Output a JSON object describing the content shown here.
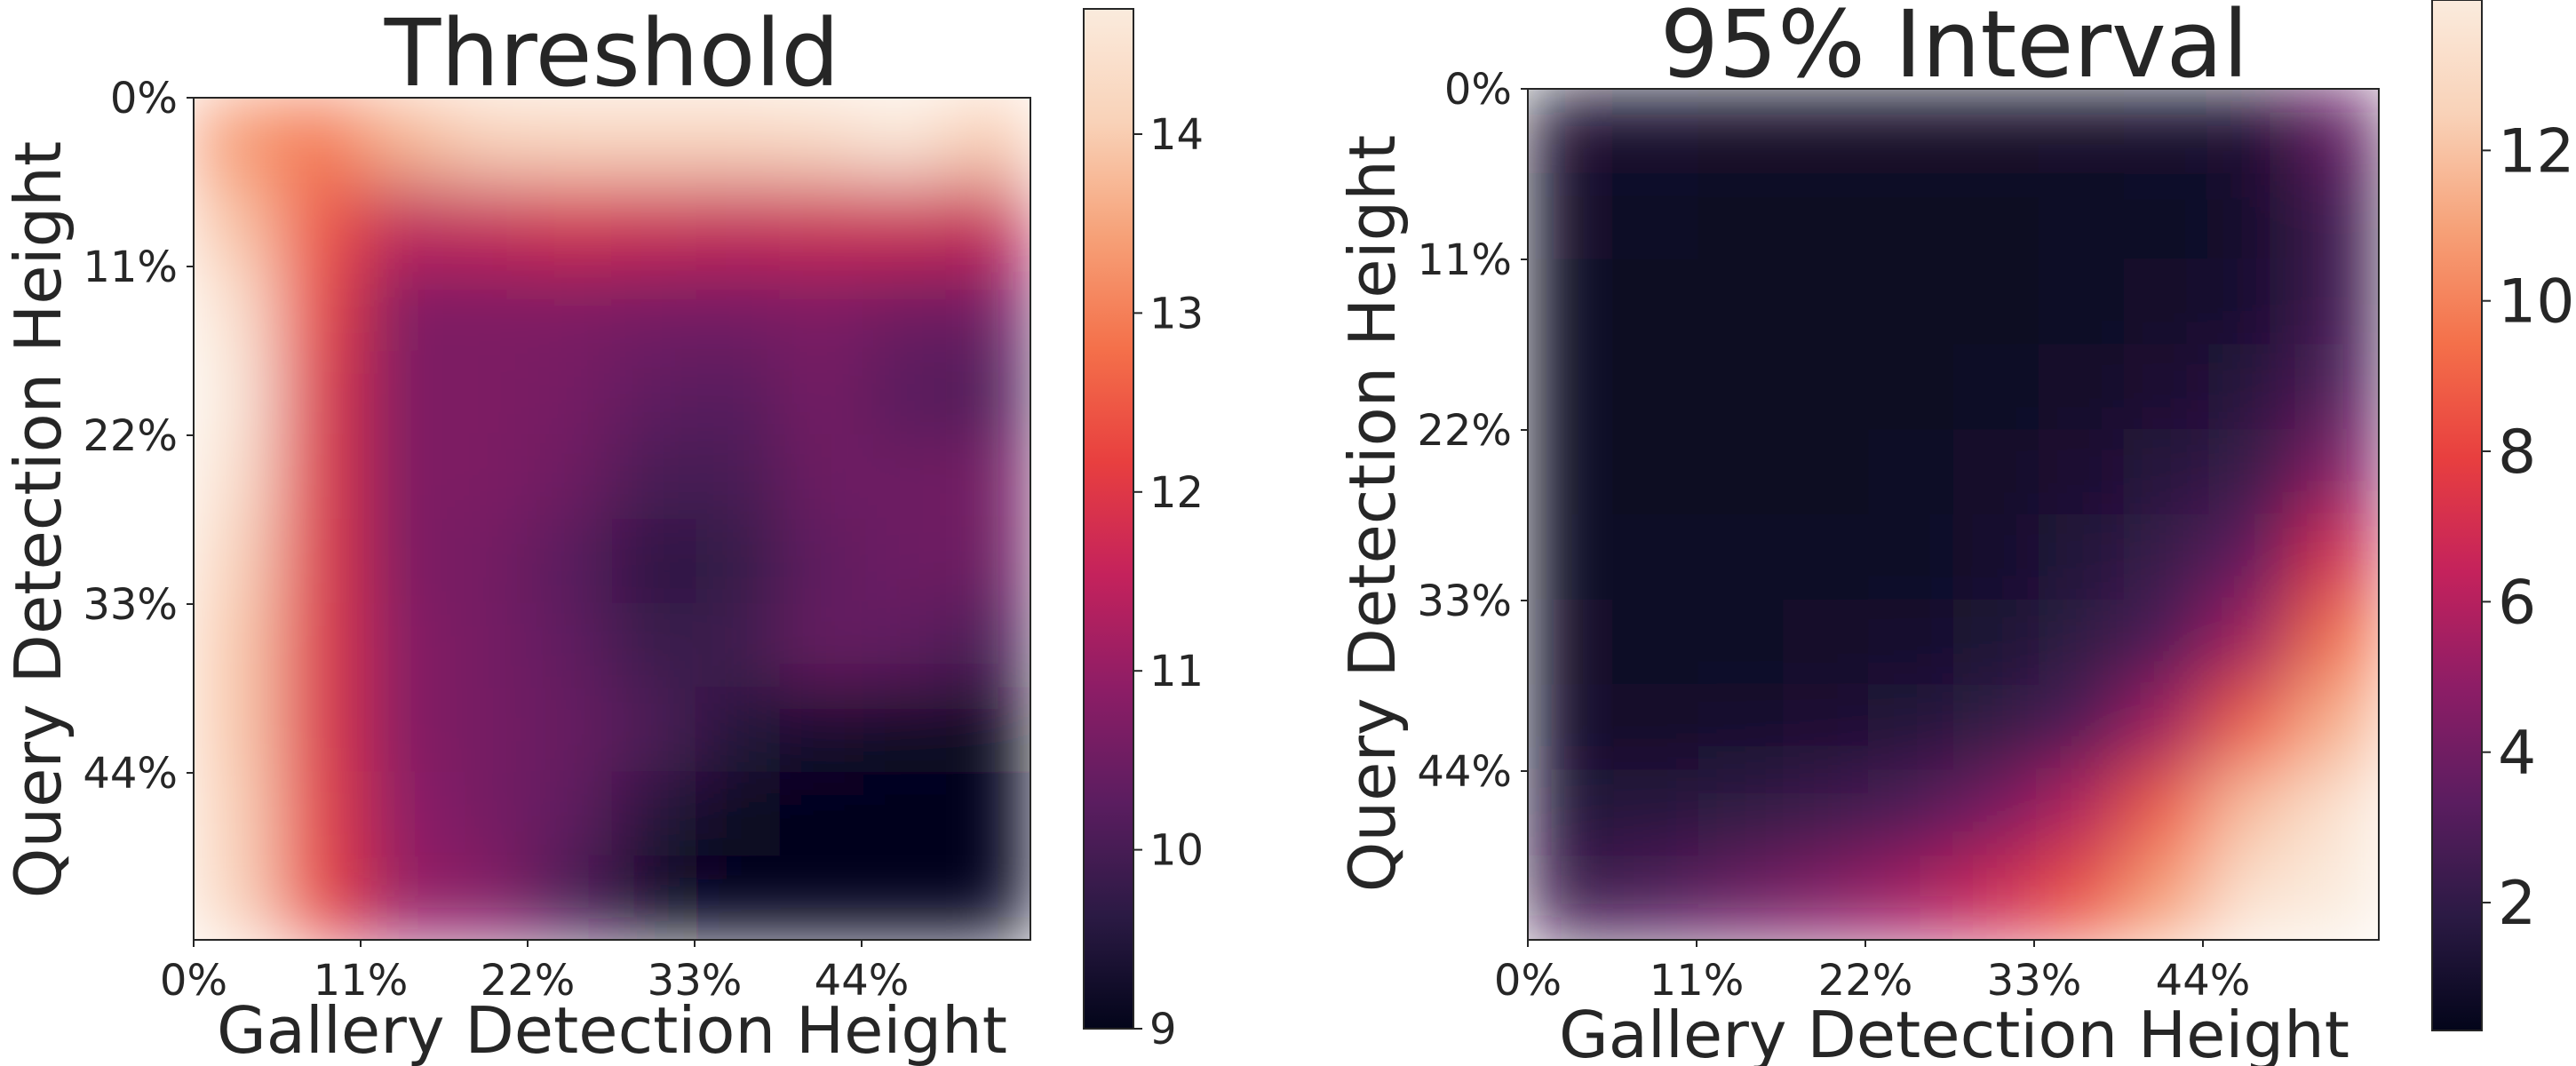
{
  "colormap": {
    "name": "rocket",
    "stops": [
      "#03051a",
      "#2b1a44",
      "#5b1d60",
      "#8d1d66",
      "#c4225c",
      "#e83f3f",
      "#f4704a",
      "#f6a178",
      "#f9d2b8",
      "#faebdd"
    ]
  },
  "chart_data": [
    {
      "type": "heatmap",
      "title": "Threshold",
      "xlabel": "Gallery Detection Height",
      "ylabel": "Query Detection Height",
      "x_ticks": [
        "0%",
        "11%",
        "22%",
        "33%",
        "44%"
      ],
      "y_ticks": [
        "0%",
        "11%",
        "22%",
        "33%",
        "44%"
      ],
      "colorbar": {
        "min": 9,
        "max": 14.7,
        "ticks": [
          "9",
          "10",
          "11",
          "12",
          "13",
          "14"
        ],
        "tick_values": [
          9,
          10,
          11,
          12,
          13,
          14
        ]
      },
      "grid_cells": 10,
      "values": [
        [
          13.3,
          12.9,
          13.7,
          14.1,
          14.2,
          14.2,
          14.2,
          14.3,
          14.6,
          14.0
        ],
        [
          13.9,
          12.5,
          11.5,
          11.6,
          11.8,
          11.7,
          11.6,
          11.7,
          11.7,
          11.6
        ],
        [
          14.5,
          12.2,
          10.7,
          10.7,
          10.7,
          10.6,
          10.6,
          10.7,
          10.5,
          10.5
        ],
        [
          14.7,
          12.0,
          10.7,
          10.7,
          10.6,
          10.3,
          10.2,
          10.6,
          10.2,
          10.1
        ],
        [
          14.5,
          12.0,
          10.7,
          10.7,
          10.5,
          10.0,
          10.0,
          10.5,
          10.5,
          10.6
        ],
        [
          14.2,
          12.0,
          10.7,
          10.6,
          10.2,
          9.6,
          9.7,
          10.3,
          10.5,
          10.5
        ],
        [
          14.0,
          12.0,
          10.8,
          10.6,
          10.3,
          9.8,
          9.9,
          10.4,
          10.3,
          10.0
        ],
        [
          14.0,
          12.0,
          10.8,
          10.6,
          10.4,
          10.1,
          9.5,
          9.3,
          9.2,
          9.1
        ],
        [
          14.1,
          12.1,
          10.9,
          10.6,
          10.3,
          9.5,
          9.1,
          9.0,
          9.0,
          9.0
        ],
        [
          14.2,
          12.2,
          11.0,
          10.8,
          10.0,
          9.2,
          9.0,
          9.0,
          9.0,
          9.0
        ]
      ]
    },
    {
      "type": "heatmap",
      "title": "95% Interval",
      "xlabel": "Gallery Detection Height",
      "ylabel": "Query Detection Height",
      "x_ticks": [
        "0%",
        "11%",
        "22%",
        "33%",
        "44%"
      ],
      "y_ticks": [
        "0%",
        "11%",
        "22%",
        "33%",
        "44%"
      ],
      "colorbar": {
        "min": 0.3,
        "max": 14,
        "ticks": [
          "2",
          "4",
          "6",
          "8",
          "10",
          "12"
        ],
        "tick_values": [
          2,
          4,
          6,
          8,
          10,
          12
        ]
      },
      "grid_cells": 10,
      "values": [
        [
          1.2,
          1.0,
          0.9,
          0.9,
          0.9,
          0.9,
          0.9,
          1.0,
          1.2,
          3.5
        ],
        [
          0.9,
          0.7,
          0.6,
          0.6,
          0.6,
          0.6,
          0.7,
          0.8,
          1.0,
          2.5
        ],
        [
          0.8,
          0.6,
          0.5,
          0.5,
          0.5,
          0.6,
          0.7,
          0.9,
          1.1,
          2.5
        ],
        [
          0.8,
          0.6,
          0.5,
          0.5,
          0.6,
          0.7,
          0.9,
          1.2,
          1.6,
          3.0
        ],
        [
          0.8,
          0.6,
          0.6,
          0.6,
          0.7,
          0.9,
          1.2,
          1.6,
          2.2,
          4.5
        ],
        [
          0.8,
          0.7,
          0.7,
          0.7,
          0.8,
          1.0,
          1.5,
          2.2,
          3.5,
          7.0
        ],
        [
          0.9,
          0.8,
          0.8,
          0.9,
          1.0,
          1.3,
          1.9,
          3.0,
          5.5,
          9.5
        ],
        [
          1.0,
          0.9,
          1.0,
          1.2,
          1.5,
          2.0,
          3.0,
          5.5,
          9.0,
          11.5
        ],
        [
          1.5,
          1.6,
          1.9,
          2.4,
          3.0,
          4.2,
          6.0,
          9.0,
          12.0,
          13.5
        ],
        [
          2.5,
          3.0,
          3.8,
          4.6,
          5.5,
          6.8,
          8.5,
          11.0,
          13.5,
          14.0
        ]
      ]
    }
  ]
}
